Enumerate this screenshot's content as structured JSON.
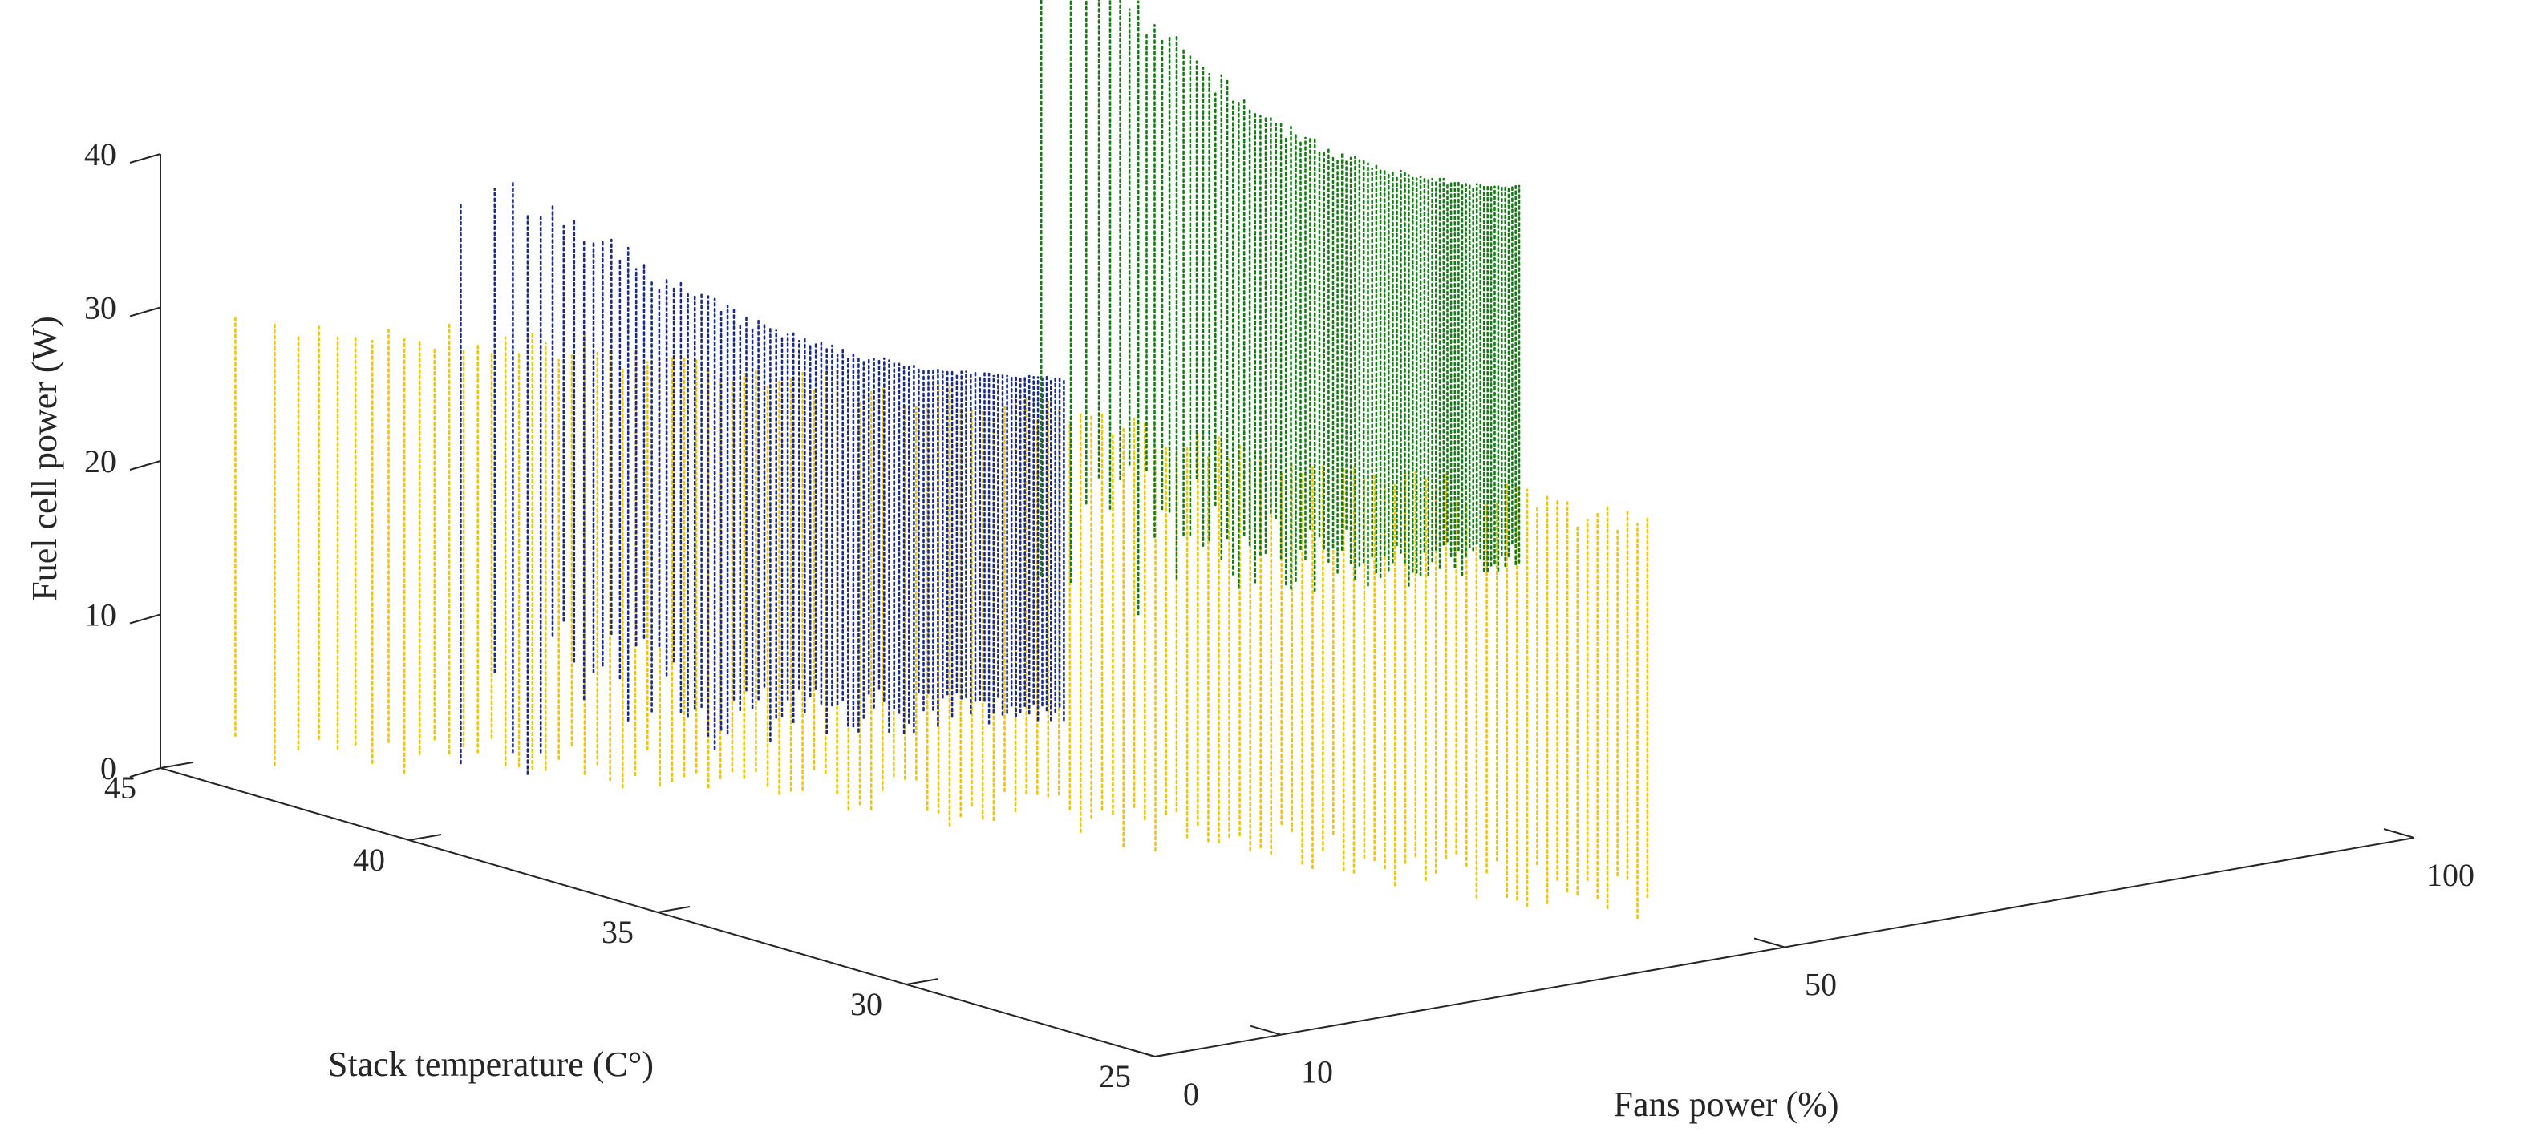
{
  "chart_data": {
    "type": "scatter3d",
    "title": "",
    "axes": {
      "x": {
        "label": "Fans power (%)",
        "range": [
          0,
          100
        ],
        "ticks": [
          0,
          10,
          50,
          100
        ]
      },
      "y": {
        "label": "Stack temperature (C°)",
        "range": [
          25,
          45
        ],
        "ticks": [
          25,
          30,
          35,
          40,
          45
        ]
      },
      "z": {
        "label": "Fuel cell power (W)",
        "range": [
          0,
          40
        ],
        "ticks": [
          0,
          10,
          20,
          30,
          40
        ]
      }
    },
    "grid": false,
    "legend": "none",
    "series": [
      {
        "color": "#f2c500",
        "fan_power_range": [
          2,
          47
        ],
        "stack_temperature_range": [
          27,
          44
        ],
        "fuel_cell_power_range": [
          0,
          30
        ],
        "line_count": 120
      },
      {
        "color": "#1a2a8c",
        "fan_power_range": [
          12,
          52
        ],
        "stack_temperature_range": [
          40,
          42
        ],
        "fuel_cell_power_range": [
          0,
          40
        ],
        "line_count": 95
      },
      {
        "color": "#137d13",
        "fan_power_range": [
          66,
          100
        ],
        "stack_temperature_range": [
          43,
          44
        ],
        "fuel_cell_power_range": [
          0,
          45
        ],
        "line_count": 90
      }
    ]
  }
}
